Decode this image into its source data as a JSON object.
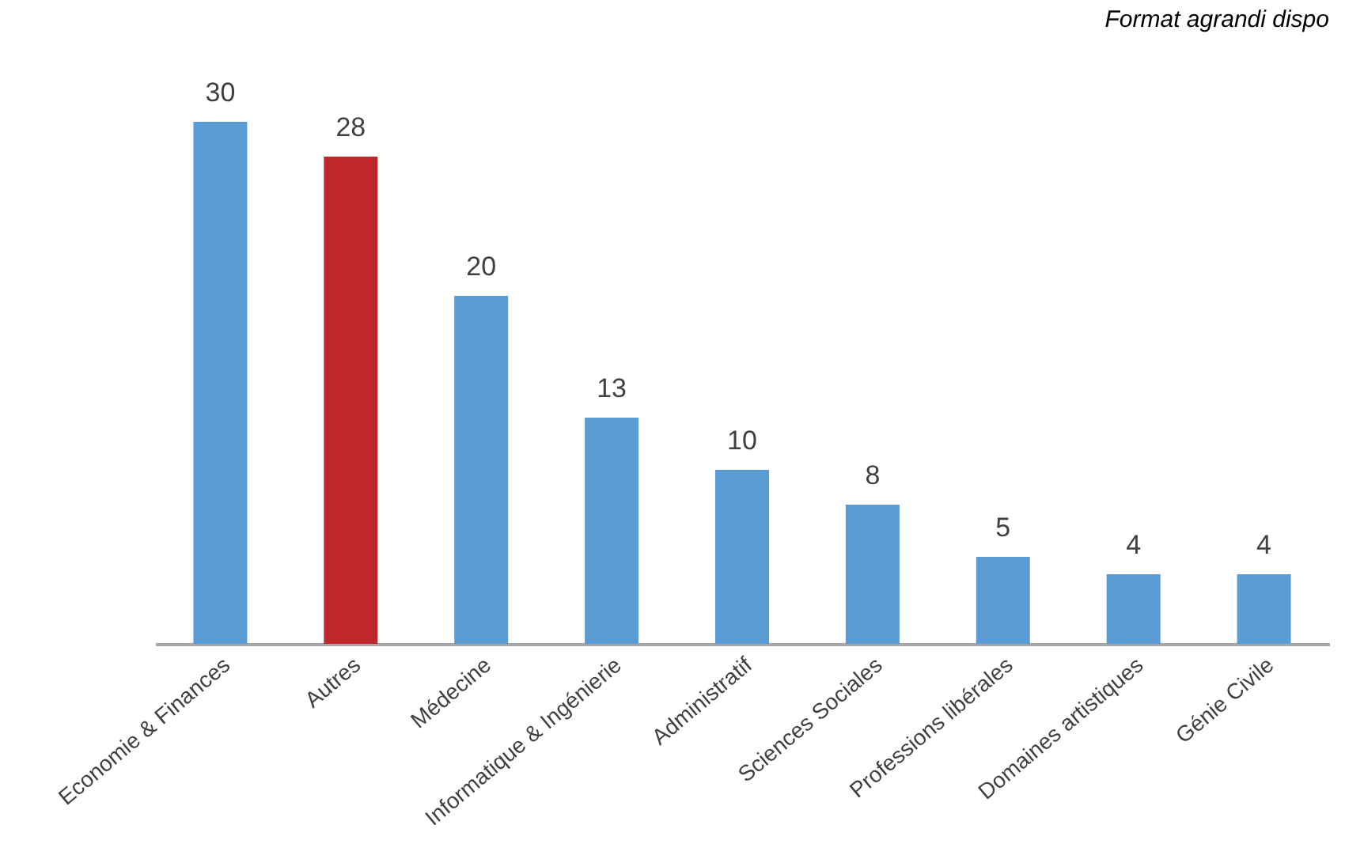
{
  "chart_data": {
    "type": "bar",
    "annotations": [
      "Format agrandi dispo"
    ],
    "categories": [
      "Economie & Finances",
      "Autres",
      "Médecine",
      "Informatique & Ingénierie",
      "Administratif",
      "Sciences Sociales",
      "Professions libérales",
      "Domaines artistiques",
      "Génie Civile"
    ],
    "values": [
      30,
      28,
      20,
      13,
      10,
      8,
      5,
      4,
      4
    ],
    "colors": [
      "#5b9bd5",
      "#c0272d",
      "#5b9bd5",
      "#5b9bd5",
      "#5b9bd5",
      "#5b9bd5",
      "#5b9bd5",
      "#5b9bd5",
      "#5b9bd5"
    ],
    "data_labels": true
  }
}
